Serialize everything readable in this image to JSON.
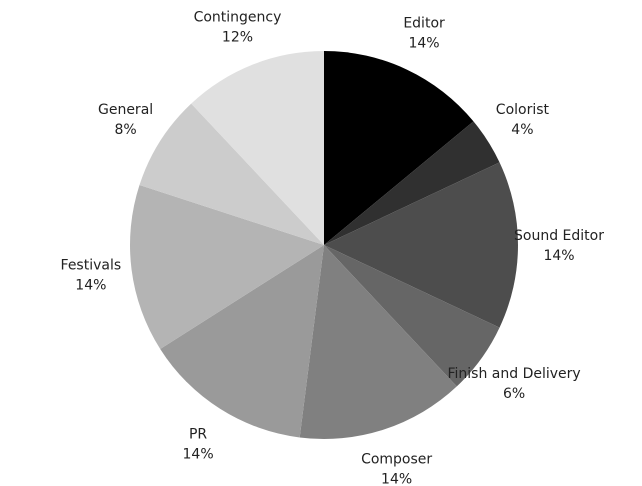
{
  "chart_data": {
    "type": "pie",
    "categories": [
      "Editor",
      "Colorist",
      "Sound Editor",
      "Finish and Delivery",
      "Composer",
      "PR",
      "Festivals",
      "General",
      "Contingency"
    ],
    "values": [
      14,
      4,
      14,
      6,
      14,
      14,
      14,
      8,
      12
    ],
    "value_labels": [
      "14%",
      "4%",
      "14%",
      "6%",
      "14%",
      "14%",
      "14%",
      "8%",
      "12%"
    ],
    "colors": [
      "#000000",
      "#303030",
      "#4d4d4d",
      "#666666",
      "#808080",
      "#9a9a9a",
      "#b4b4b4",
      "#cccccc",
      "#e0e0e0"
    ]
  }
}
